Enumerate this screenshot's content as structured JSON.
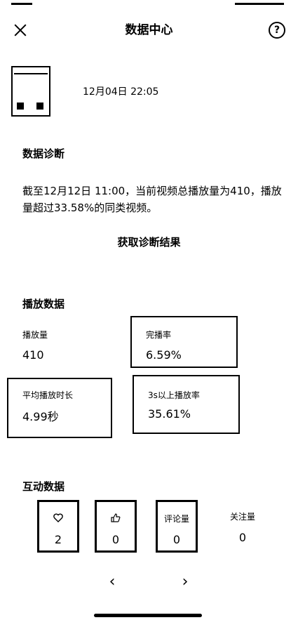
{
  "nav": {
    "title": "数据中心",
    "help": "?"
  },
  "video": {
    "publish_time": "12月04日 22:05"
  },
  "diagnosis": {
    "title": "数据诊断",
    "text": "截至12月12日 11:00，当前视频总播放量为410，播放量超过33.58%的同类视频。",
    "button": "获取诊断结果"
  },
  "play_data": {
    "title": "播放数据",
    "views_label": "播放量",
    "views_value": "410",
    "completion_label": "完播率",
    "completion_value": "6.59%",
    "avg_duration_label": "平均播放时长",
    "avg_duration_value": "4.99秒",
    "over3s_label": "3s以上播放率",
    "over3s_value": "35.61%"
  },
  "interaction": {
    "title": "互动数据",
    "likes_icon": "heart-icon",
    "likes_value": "2",
    "thumbs_icon": "thumbs-up-icon",
    "thumbs_value": "0",
    "comments_label": "评论量",
    "comments_value": "0",
    "follows_label": "关注量",
    "follows_value": "0"
  },
  "pager": {
    "prev": "‹",
    "next": "›"
  }
}
